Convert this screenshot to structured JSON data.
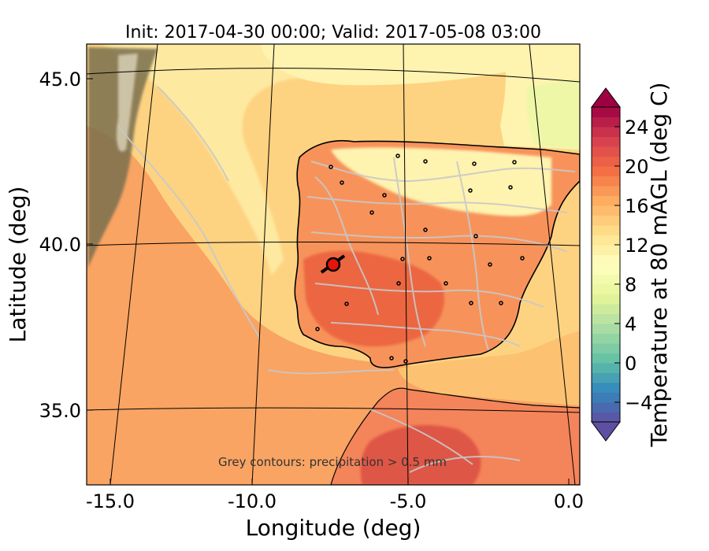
{
  "title": "Init: 2017-04-30 00:00; Valid: 2017-05-08 03:00",
  "xlabel": "Longitude (deg)",
  "ylabel": "Latitude (deg)",
  "xticks": [
    "-15.0",
    "-10.0",
    "-5.0",
    "0.0"
  ],
  "yticks": [
    "45.0",
    "40.0",
    "35.0"
  ],
  "note": "Grey contours: precipitation > 0.5 mm",
  "colorbar": {
    "label": "Temperature at 80 mAGL (deg C)",
    "ticks": [
      "24",
      "20",
      "16",
      "12",
      "8",
      "4",
      "0",
      "−4"
    ],
    "tick_values": [
      24,
      20,
      16,
      12,
      8,
      4,
      0,
      -4
    ],
    "range": [
      -6,
      26
    ],
    "palette": [
      "#5e4fa2",
      "#3288bd",
      "#66c2a5",
      "#abdda4",
      "#e6f598",
      "#ffffbf",
      "#fee08b",
      "#fdae61",
      "#f46d43",
      "#d53e4f",
      "#9e0142"
    ]
  },
  "marker": {
    "lon": -7.6,
    "lat": 39.4,
    "color": "#e8140c"
  },
  "colors": {
    "ocean_warm": "#f9a463",
    "ocean_mild": "#fdd382",
    "ocean_cool": "#fee9a0",
    "land_hot": "#ea5e3e",
    "land_warm": "#f7935a",
    "land_mild": "#fdd07e",
    "land_cool": "#fff3b0",
    "precip_contour": "#c8c8c8",
    "coastline": "#000000",
    "cloud_band": "#7a7050"
  }
}
